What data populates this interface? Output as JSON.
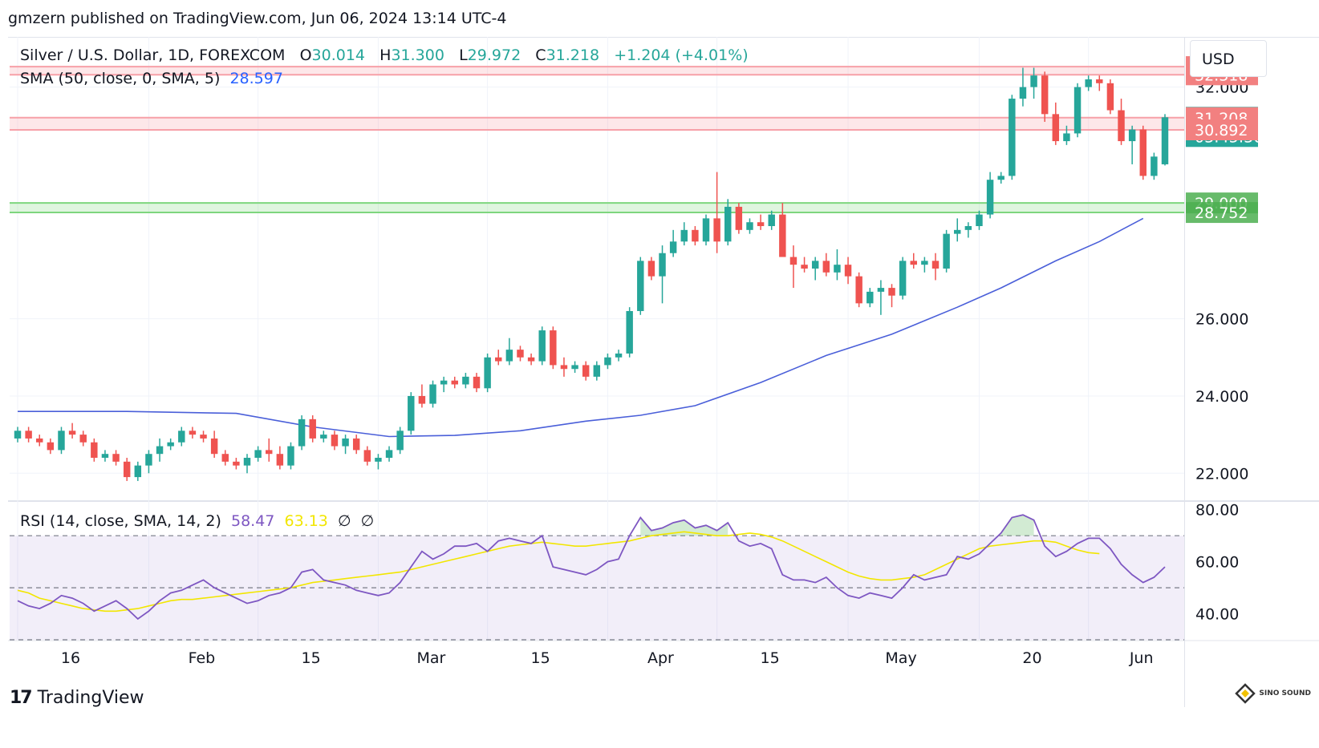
{
  "header": {
    "published_line": "gmzern published on TradingView.com, Jun 06, 2024 13:14 UTC-4"
  },
  "legend": {
    "symbol": "Silver / U.S. Dollar, 1D, FOREXCOM",
    "open_label": "O",
    "open": "30.014",
    "high_label": "H",
    "high": "31.300",
    "low_label": "L",
    "low": "29.972",
    "close_label": "C",
    "close": "31.218",
    "change": "+1.204 (+4.01%)",
    "sma_label": "SMA (50, close, 0, SMA, 5)",
    "sma_value": "28.597",
    "rsi_label": "RSI (14, close, SMA, 14, 2)",
    "rsi_value": "58.47",
    "rsi_ma_value": "63.13",
    "rsi_extra1": "∅",
    "rsi_extra2": "∅"
  },
  "currency_button": "USD",
  "footer": {
    "brand": "TradingView",
    "watermark": "SINO SOUND"
  },
  "colors": {
    "up": "#26a69a",
    "down": "#ef5350",
    "sma": "#4a5fd9",
    "rsi": "#7e57c2",
    "rsi_ma": "#f2e600",
    "res_zone": "#f7a0a8",
    "sup_zone": "#7ed67e"
  },
  "chart_data": {
    "type": "candlestick",
    "symbol": "XAGUSD",
    "ylim": [
      21.3,
      33.3
    ],
    "price_ticks": [
      "22.000",
      "24.000",
      "26.000",
      "32.000"
    ],
    "x_labels": [
      {
        "label": "16",
        "index": 0
      },
      {
        "label": "Feb",
        "index": 12
      },
      {
        "label": "15",
        "index": 22
      },
      {
        "label": "Mar",
        "index": 33
      },
      {
        "label": "15",
        "index": 43
      },
      {
        "label": "Apr",
        "index": 54
      },
      {
        "label": "15",
        "index": 64
      },
      {
        "label": "May",
        "index": 76
      },
      {
        "label": "20",
        "index": 88
      },
      {
        "label": "Jun",
        "index": 98
      }
    ],
    "price_labels": [
      {
        "text": "32.530",
        "value": 32.53,
        "kind": "resistance"
      },
      {
        "text": "32.318",
        "value": 32.318,
        "kind": "resistance"
      },
      {
        "text": "31.218",
        "value": 31.218,
        "kind": "last"
      },
      {
        "text": "03:45:30",
        "value": 31.218,
        "kind": "countdown"
      },
      {
        "text": "31.208",
        "value": 31.208,
        "kind": "resistance"
      },
      {
        "text": "30.892",
        "value": 30.892,
        "kind": "resistance"
      },
      {
        "text": "29.000",
        "value": 29.0,
        "kind": "support"
      },
      {
        "text": "28.752",
        "value": 28.752,
        "kind": "support"
      }
    ],
    "zones": [
      {
        "from": 32.318,
        "to": 32.53,
        "kind": "resistance"
      },
      {
        "from": 30.892,
        "to": 31.208,
        "kind": "resistance"
      },
      {
        "from": 28.752,
        "to": 29.0,
        "kind": "support"
      }
    ],
    "candles": [
      [
        22.9,
        23.2,
        22.8,
        23.1
      ],
      [
        23.1,
        23.2,
        22.8,
        22.9
      ],
      [
        22.9,
        23.0,
        22.7,
        22.8
      ],
      [
        22.8,
        22.9,
        22.5,
        22.6
      ],
      [
        22.6,
        23.2,
        22.5,
        23.1
      ],
      [
        23.1,
        23.3,
        22.9,
        23.0
      ],
      [
        23.0,
        23.1,
        22.7,
        22.8
      ],
      [
        22.8,
        22.9,
        22.3,
        22.4
      ],
      [
        22.4,
        22.6,
        22.3,
        22.5
      ],
      [
        22.5,
        22.6,
        22.2,
        22.3
      ],
      [
        22.3,
        22.4,
        21.8,
        21.9
      ],
      [
        21.9,
        22.3,
        21.8,
        22.2
      ],
      [
        22.2,
        22.6,
        22.0,
        22.5
      ],
      [
        22.5,
        22.9,
        22.3,
        22.7
      ],
      [
        22.7,
        22.9,
        22.6,
        22.8
      ],
      [
        22.8,
        23.2,
        22.7,
        23.1
      ],
      [
        23.1,
        23.2,
        22.9,
        23.0
      ],
      [
        23.0,
        23.1,
        22.8,
        22.9
      ],
      [
        22.9,
        23.1,
        22.4,
        22.5
      ],
      [
        22.5,
        22.6,
        22.2,
        22.3
      ],
      [
        22.3,
        22.4,
        22.1,
        22.2
      ],
      [
        22.2,
        22.5,
        22.0,
        22.4
      ],
      [
        22.4,
        22.7,
        22.3,
        22.6
      ],
      [
        22.6,
        22.9,
        22.3,
        22.5
      ],
      [
        22.5,
        22.7,
        22.1,
        22.2
      ],
      [
        22.2,
        22.8,
        22.1,
        22.7
      ],
      [
        22.7,
        23.5,
        22.6,
        23.4
      ],
      [
        23.4,
        23.5,
        22.8,
        22.9
      ],
      [
        22.9,
        23.1,
        22.8,
        23.0
      ],
      [
        23.0,
        23.1,
        22.6,
        22.7
      ],
      [
        22.7,
        23.0,
        22.5,
        22.9
      ],
      [
        22.9,
        23.0,
        22.5,
        22.6
      ],
      [
        22.6,
        22.7,
        22.2,
        22.3
      ],
      [
        22.3,
        22.5,
        22.1,
        22.4
      ],
      [
        22.4,
        22.7,
        22.3,
        22.6
      ],
      [
        22.6,
        23.2,
        22.5,
        23.1
      ],
      [
        23.1,
        24.1,
        23.0,
        24.0
      ],
      [
        24.0,
        24.3,
        23.7,
        23.8
      ],
      [
        23.8,
        24.4,
        23.7,
        24.3
      ],
      [
        24.3,
        24.5,
        24.1,
        24.4
      ],
      [
        24.4,
        24.5,
        24.2,
        24.3
      ],
      [
        24.3,
        24.6,
        24.2,
        24.5
      ],
      [
        24.5,
        24.6,
        24.1,
        24.2
      ],
      [
        24.2,
        25.1,
        24.1,
        25.0
      ],
      [
        25.0,
        25.2,
        24.8,
        24.9
      ],
      [
        24.9,
        25.5,
        24.8,
        25.2
      ],
      [
        25.2,
        25.3,
        24.9,
        25.0
      ],
      [
        25.0,
        25.1,
        24.8,
        24.9
      ],
      [
        24.9,
        25.8,
        24.8,
        25.7
      ],
      [
        25.7,
        25.8,
        24.7,
        24.8
      ],
      [
        24.8,
        25.0,
        24.5,
        24.7
      ],
      [
        24.7,
        24.9,
        24.6,
        24.8
      ],
      [
        24.8,
        24.9,
        24.4,
        24.5
      ],
      [
        24.5,
        24.9,
        24.4,
        24.8
      ],
      [
        24.8,
        25.1,
        24.7,
        25.0
      ],
      [
        25.0,
        25.2,
        24.9,
        25.1
      ],
      [
        25.1,
        26.3,
        25.0,
        26.2
      ],
      [
        26.2,
        27.6,
        26.1,
        27.5
      ],
      [
        27.5,
        27.6,
        27.0,
        27.1
      ],
      [
        27.1,
        27.9,
        26.4,
        27.7
      ],
      [
        27.7,
        28.3,
        27.6,
        28.0
      ],
      [
        28.0,
        28.5,
        27.9,
        28.3
      ],
      [
        28.3,
        28.4,
        27.9,
        28.0
      ],
      [
        28.0,
        28.7,
        27.9,
        28.6
      ],
      [
        28.6,
        29.8,
        27.7,
        28.0
      ],
      [
        28.0,
        29.1,
        27.9,
        28.9
      ],
      [
        28.9,
        29.0,
        28.2,
        28.3
      ],
      [
        28.3,
        28.6,
        28.2,
        28.5
      ],
      [
        28.5,
        28.7,
        28.3,
        28.4
      ],
      [
        28.4,
        28.8,
        28.3,
        28.7
      ],
      [
        28.7,
        29.0,
        27.7,
        27.6
      ],
      [
        27.6,
        27.9,
        26.8,
        27.4
      ],
      [
        27.4,
        27.6,
        27.2,
        27.3
      ],
      [
        27.3,
        27.6,
        27.0,
        27.5
      ],
      [
        27.5,
        27.7,
        27.1,
        27.2
      ],
      [
        27.2,
        27.8,
        27.0,
        27.4
      ],
      [
        27.4,
        27.6,
        26.9,
        27.1
      ],
      [
        27.1,
        27.2,
        26.3,
        26.4
      ],
      [
        26.4,
        26.8,
        26.3,
        26.7
      ],
      [
        26.7,
        27.0,
        26.1,
        26.8
      ],
      [
        26.8,
        26.9,
        26.3,
        26.6
      ],
      [
        26.6,
        27.6,
        26.5,
        27.5
      ],
      [
        27.5,
        27.7,
        27.3,
        27.4
      ],
      [
        27.4,
        27.6,
        27.2,
        27.5
      ],
      [
        27.5,
        27.7,
        27.0,
        27.3
      ],
      [
        27.3,
        28.3,
        27.2,
        28.2
      ],
      [
        28.2,
        28.6,
        28.0,
        28.3
      ],
      [
        28.3,
        28.5,
        28.1,
        28.4
      ],
      [
        28.4,
        28.8,
        28.3,
        28.7
      ],
      [
        28.7,
        29.8,
        28.6,
        29.6
      ],
      [
        29.6,
        29.8,
        29.5,
        29.7
      ],
      [
        29.7,
        31.8,
        29.6,
        31.7
      ],
      [
        31.7,
        32.5,
        31.5,
        32.0
      ],
      [
        32.0,
        32.5,
        31.7,
        32.3
      ],
      [
        32.3,
        32.4,
        31.1,
        31.3
      ],
      [
        31.3,
        31.6,
        30.5,
        30.6
      ],
      [
        30.6,
        31.0,
        30.5,
        30.8
      ],
      [
        30.8,
        32.1,
        30.7,
        32.0
      ],
      [
        32.0,
        32.3,
        31.9,
        32.2
      ],
      [
        32.2,
        32.3,
        31.9,
        32.1
      ],
      [
        32.1,
        32.2,
        31.3,
        31.4
      ],
      [
        31.4,
        31.7,
        30.5,
        30.6
      ],
      [
        30.6,
        31.0,
        30.0,
        30.9
      ],
      [
        30.9,
        31.0,
        29.6,
        29.7
      ],
      [
        29.7,
        30.3,
        29.6,
        30.2
      ],
      [
        30.0,
        31.3,
        29.97,
        31.218
      ]
    ],
    "sma": [
      [
        0,
        23.6
      ],
      [
        10,
        23.6
      ],
      [
        20,
        23.55
      ],
      [
        27,
        23.2
      ],
      [
        34,
        22.95
      ],
      [
        40,
        22.98
      ],
      [
        46,
        23.1
      ],
      [
        52,
        23.35
      ],
      [
        57,
        23.5
      ],
      [
        62,
        23.75
      ],
      [
        68,
        24.35
      ],
      [
        74,
        25.05
      ],
      [
        80,
        25.6
      ],
      [
        86,
        26.3
      ],
      [
        90,
        26.8
      ],
      [
        95,
        27.5
      ],
      [
        99,
        28.0
      ],
      [
        103,
        28.6
      ]
    ],
    "rsi": {
      "ylim": [
        30,
        83
      ],
      "ticks": [
        "40.00",
        "60.00",
        "80.00"
      ],
      "bands": [
        30,
        50,
        70
      ],
      "values": [
        45,
        43,
        42,
        44,
        47,
        46,
        44,
        41,
        43,
        45,
        42,
        38,
        41,
        45,
        48,
        49,
        51,
        53,
        50,
        48,
        46,
        44,
        45,
        47,
        48,
        50,
        56,
        57,
        53,
        52,
        51,
        49,
        48,
        47,
        48,
        52,
        58,
        64,
        61,
        63,
        66,
        66,
        67,
        64,
        68,
        69,
        68,
        67,
        70,
        58,
        57,
        56,
        55,
        57,
        60,
        61,
        70,
        77,
        72,
        73,
        75,
        76,
        73,
        74,
        72,
        75,
        68,
        66,
        67,
        65,
        55,
        53,
        53,
        52,
        54,
        50,
        47,
        46,
        48,
        47,
        46,
        50,
        55,
        53,
        54,
        55,
        62,
        61,
        63,
        67,
        71,
        77,
        78,
        76,
        66,
        62,
        64,
        67,
        69,
        69,
        65,
        59,
        55,
        52,
        54,
        58
      ],
      "ma": [
        49,
        48,
        46,
        45,
        44,
        43,
        42,
        41.5,
        41,
        41,
        41.5,
        42,
        43,
        44,
        45,
        45.5,
        45.5,
        46,
        46.5,
        47,
        47.5,
        48,
        48.5,
        49,
        49.5,
        50,
        51,
        52,
        52.5,
        53,
        53.5,
        54,
        54.5,
        55,
        55.5,
        56,
        57,
        58,
        59,
        60,
        61,
        62,
        63,
        64,
        65,
        66,
        66.5,
        67,
        67.5,
        67,
        66.5,
        66,
        66,
        66.5,
        67,
        67.5,
        68,
        69,
        70,
        70.5,
        71,
        71.5,
        71,
        70.5,
        70,
        70,
        70.5,
        71,
        70.5,
        69.5,
        68,
        66,
        64,
        62,
        60,
        58,
        56,
        54.5,
        53.5,
        53,
        53,
        53.5,
        54,
        55,
        57,
        59,
        61,
        63,
        65,
        66,
        66.5,
        67,
        67.5,
        68,
        68,
        67.5,
        66,
        64.5,
        63.5,
        63.1
      ]
    }
  }
}
